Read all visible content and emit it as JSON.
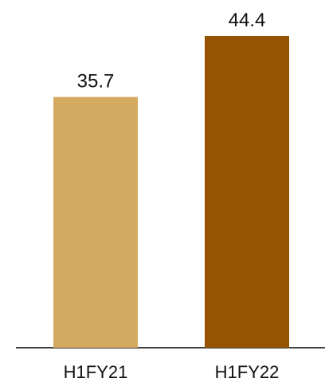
{
  "chart_data": {
    "type": "bar",
    "categories": [
      "H1FY21",
      "H1FY22"
    ],
    "values": [
      35.7,
      44.4
    ],
    "colors": [
      "#d4aa60",
      "#975400"
    ]
  }
}
